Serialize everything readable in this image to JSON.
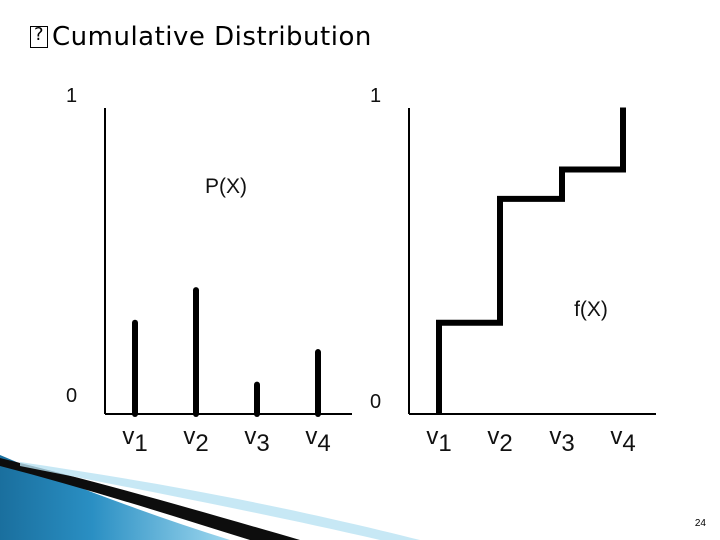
{
  "slide": {
    "title": "Cumulative Distribution",
    "bullet_icon": "square-bullet-icon",
    "page_number": "24"
  },
  "chart_data": [
    {
      "type": "bar",
      "title": "P(X)",
      "categories": [
        "v1",
        "v2",
        "v3",
        "v4"
      ],
      "values": [
        0.28,
        0.38,
        0.09,
        0.19
      ],
      "ylim": [
        0,
        1
      ],
      "y_ticks": [
        "0",
        "1"
      ],
      "grid": false
    },
    {
      "type": "line",
      "title": "f(X)",
      "categories": [
        "v1",
        "v2",
        "v3",
        "v4"
      ],
      "values": [
        0.28,
        0.66,
        0.75,
        0.94
      ],
      "step": true,
      "ylim": [
        0,
        1
      ],
      "y_ticks": [
        "0",
        "1"
      ],
      "grid": false
    }
  ],
  "colors": {
    "ink": "#000000",
    "accent_blue": "#2a8fc3",
    "accent_light": "#7cc7e8"
  }
}
